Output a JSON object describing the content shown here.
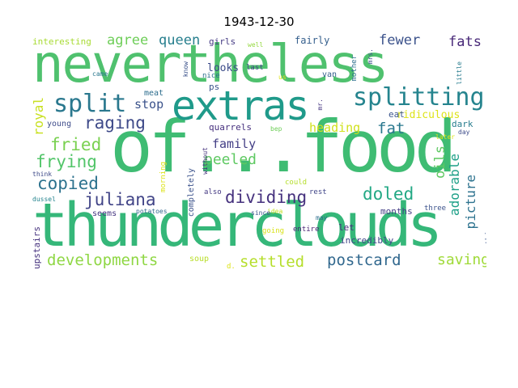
{
  "title": "1943-12-30",
  "words": {
    "nevertheless": {
      "text": "nevertheless",
      "color": "#4fc16e"
    },
    "of_food": {
      "text": "of...food",
      "color": "#3fbc73"
    },
    "thunderclouds": {
      "text": "thunderclouds",
      "color": "#35b779"
    },
    "extras": {
      "text": "extras",
      "color": "#1f9a8a"
    },
    "splitting": {
      "text": "splitting",
      "color": "#25848e"
    },
    "split": {
      "text": "split",
      "color": "#2a788e"
    },
    "raging": {
      "text": "raging",
      "color": "#3e4a89"
    },
    "fried": {
      "text": "fried",
      "color": "#7ad151"
    },
    "frying": {
      "text": "frying",
      "color": "#52c569"
    },
    "copied": {
      "text": "copied",
      "color": "#2c728e"
    },
    "juliana": {
      "text": "juliana",
      "color": "#414487"
    },
    "dividing": {
      "text": "dividing",
      "color": "#46327e"
    },
    "doled": {
      "text": "doled",
      "color": "#22a884"
    },
    "developments": {
      "text": "developments",
      "color": "#8fd744"
    },
    "settled": {
      "text": "settled",
      "color": "#b5de2b"
    },
    "postcard": {
      "text": "postcard",
      "color": "#31688e"
    },
    "saving": {
      "text": "saving",
      "color": "#a0da39"
    },
    "fat": {
      "text": "fat",
      "color": "#2a788e"
    },
    "fewer": {
      "text": "fewer",
      "color": "#3b528b"
    },
    "fats": {
      "text": "fats",
      "color": "#482878"
    },
    "agree": {
      "text": "agree",
      "color": "#6ece58"
    },
    "queen": {
      "text": "queen",
      "color": "#277f8e"
    },
    "peeled": {
      "text": "peeled",
      "color": "#5ec962"
    },
    "family": {
      "text": "family",
      "color": "#433e85"
    },
    "heading": {
      "text": "heading",
      "color": "#d0e11c"
    },
    "stop": {
      "text": "stop",
      "color": "#3b528b"
    },
    "royal": {
      "text": "royal",
      "color": "#c8e020"
    },
    "oils": {
      "text": "oils",
      "color": "#5ec962"
    },
    "adorable": {
      "text": "adorable",
      "color": "#1fa088"
    },
    "picture": {
      "text": "picture",
      "color": "#2c728e"
    },
    "ridiculous": {
      "text": "ridiculous",
      "color": "#dde318"
    },
    "eat": {
      "text": "eat",
      "color": "#3a548c"
    },
    "interesting": {
      "text": "interesting",
      "color": "#a8db34"
    },
    "girls": {
      "text": "girls",
      "color": "#443a83"
    },
    "well": {
      "text": "well",
      "color": "#95d840"
    },
    "fairly": {
      "text": "fairly",
      "color": "#355f8d"
    },
    "looks": {
      "text": "looks",
      "color": "#3d4d8a"
    },
    "nice": {
      "text": "nice",
      "color": "#2d708e"
    },
    "last": {
      "text": "last",
      "color": "#414487"
    },
    "ps": {
      "text": "ps",
      "color": "#3a538b"
    },
    "meat": {
      "text": "meat",
      "color": "#2e6e8e"
    },
    "quarrels": {
      "text": "quarrels",
      "color": "#46307e"
    },
    "young": {
      "text": "young",
      "color": "#3e4c8a"
    },
    "bep": {
      "text": "bep",
      "color": "#6ece58"
    },
    "came": {
      "text": "came",
      "color": "#2a788e"
    },
    "dark": {
      "text": "dark",
      "color": "#287d8e"
    },
    "day": {
      "text": "day",
      "color": "#3e4c8a"
    },
    "later": {
      "text": "later",
      "color": "#dde318"
    },
    "months": {
      "text": "months",
      "color": "#433e85"
    },
    "let": {
      "text": "let",
      "color": "#472d7b"
    },
    "incredibly": {
      "text": "incredibly",
      "color": "#404588"
    },
    "seems": {
      "text": "seems",
      "color": "#453581"
    },
    "potatoes": {
      "text": "potatoes",
      "color": "#31688e"
    },
    "upstairs": {
      "text": "upstairs",
      "color": "#46327e"
    },
    "soup": {
      "text": "soup",
      "color": "#b8de29"
    },
    "entire": {
      "text": "entire",
      "color": "#482374"
    },
    "three": {
      "text": "three",
      "color": "#3b528b"
    },
    "may": {
      "text": "may",
      "color": "#2e6e8e"
    },
    "going": {
      "text": "going",
      "color": "#d8e219"
    },
    "idea": {
      "text": "idea",
      "color": "#c2df23"
    },
    "could": {
      "text": "could",
      "color": "#b5de2b"
    },
    "rest": {
      "text": "rest",
      "color": "#404588"
    },
    "since": {
      "text": "since",
      "color": "#3b528b"
    },
    "also": {
      "text": "also",
      "color": "#443983"
    },
    "without": {
      "text": "without",
      "color": "#46327e"
    },
    "think": {
      "text": "think",
      "color": "#3e4a89"
    },
    "dussel": {
      "text": "dussel",
      "color": "#25848e"
    },
    "d": {
      "text": "d.",
      "color": "#dde318"
    },
    "know": {
      "text": "know",
      "color": "#3b528b"
    },
    "mother": {
      "text": "mother",
      "color": "#2d708e"
    },
    "mrs": {
      "text": "mrs.",
      "color": "#3e4c8a"
    },
    "van": {
      "text": "van",
      "color": "#355f8d"
    },
    "little": {
      "text": "little",
      "color": "#287c8e"
    },
    "put": {
      "text": "put",
      "color": "#3e4a89"
    },
    "things": {
      "text": "things",
      "color": "#3a548c"
    },
    "morning": {
      "text": "morning",
      "color": "#dde318"
    },
    "completely": {
      "text": "completely",
      "color": "#3b528b"
    },
    "mr": {
      "text": "mr.",
      "color": "#453581"
    },
    "us": {
      "text": "us",
      "color": "#dde318"
    }
  }
}
